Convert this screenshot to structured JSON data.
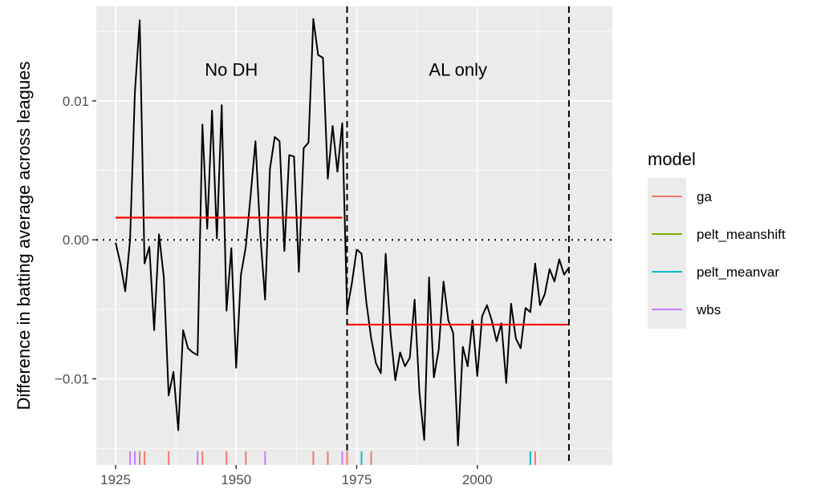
{
  "chart_data": {
    "type": "line",
    "xlabel": "",
    "ylabel": "Difference in batting average across leagues",
    "xlim": [
      1921,
      2028
    ],
    "ylim": [
      -0.0162,
      0.0168
    ],
    "x_ticks": [
      1925,
      1950,
      1975,
      2000
    ],
    "x_tick_labels": [
      "1925",
      "1950",
      "1975",
      "2000"
    ],
    "y_ticks": [
      -0.01,
      0.0,
      0.01
    ],
    "y_tick_labels": [
      "−0.01",
      "0.00",
      "0.01"
    ],
    "grid": true,
    "background": "#ebebeb",
    "series": [
      {
        "color": "#000000",
        "x": [
          1925,
          1926,
          1927,
          1928,
          1929,
          1930,
          1931,
          1932,
          1933,
          1934,
          1935,
          1936,
          1937,
          1938,
          1939,
          1940,
          1941,
          1942,
          1943,
          1944,
          1945,
          1946,
          1947,
          1948,
          1949,
          1950,
          1951,
          1952,
          1953,
          1954,
          1955,
          1956,
          1957,
          1958,
          1959,
          1960,
          1961,
          1962,
          1963,
          1964,
          1965,
          1966,
          1967,
          1968,
          1969,
          1970,
          1971,
          1972,
          1973,
          1974,
          1975,
          1976,
          1977,
          1978,
          1979,
          1980,
          1981,
          1982,
          1983,
          1984,
          1985,
          1986,
          1987,
          1988,
          1989,
          1990,
          1991,
          1992,
          1993,
          1994,
          1995,
          1996,
          1997,
          1998,
          1999,
          2000,
          2001,
          2002,
          2003,
          2004,
          2005,
          2006,
          2007,
          2008,
          2009,
          2010,
          2011,
          2012,
          2013,
          2014,
          2015,
          2016,
          2017,
          2018,
          2019
        ],
        "y": [
          -0.0002,
          -0.0017,
          -0.0037,
          0.0,
          0.0106,
          0.0158,
          -0.0017,
          -0.0005,
          -0.0065,
          0.0004,
          -0.0027,
          -0.0112,
          -0.0095,
          -0.0137,
          -0.0065,
          -0.0078,
          -0.0081,
          -0.0083,
          0.0083,
          0.0008,
          0.0093,
          0.0001,
          0.0097,
          -0.0051,
          -0.0006,
          -0.0092,
          -0.0025,
          -0.0005,
          0.0032,
          0.0071,
          0.0004,
          -0.0043,
          0.0051,
          0.0074,
          0.0071,
          -0.0008,
          0.0061,
          0.006,
          -0.0023,
          0.0066,
          0.007,
          0.0159,
          0.0133,
          0.0131,
          0.0044,
          0.0082,
          0.0049,
          0.0084,
          -0.0051,
          -0.0031,
          -0.0007,
          -0.001,
          -0.0045,
          -0.0071,
          -0.0089,
          -0.0096,
          -0.001,
          -0.0067,
          -0.0101,
          -0.0081,
          -0.0091,
          -0.0085,
          -0.0043,
          -0.011,
          -0.0144,
          -0.0027,
          -0.0099,
          -0.0079,
          -0.003,
          -0.0058,
          -0.0067,
          -0.0148,
          -0.0077,
          -0.0091,
          -0.0058,
          -0.0098,
          -0.0055,
          -0.0047,
          -0.0058,
          -0.0073,
          -0.006,
          -0.0103,
          -0.0046,
          -0.0071,
          -0.0078,
          -0.0049,
          -0.0052,
          -0.0017,
          -0.0047,
          -0.0039,
          -0.0021,
          -0.003,
          -0.0014,
          -0.0025,
          -0.002
        ]
      }
    ],
    "segments": [
      {
        "color": "#ff0000",
        "x0": 1925,
        "x1": 1972,
        "y": 0.0016
      },
      {
        "color": "#ff0000",
        "x0": 1973,
        "x1": 2019,
        "y": -0.0061
      }
    ],
    "hline": {
      "y": 0.0,
      "style": "dotted",
      "color": "#000000"
    },
    "vlines": [
      {
        "x": 1973,
        "style": "dashed",
        "color": "#000000"
      },
      {
        "x": 2019,
        "style": "dashed",
        "color": "#000000"
      }
    ],
    "annotations": [
      {
        "text": "No DH",
        "x": 1949,
        "y": 0.0118
      },
      {
        "text": "AL only",
        "x": 1996,
        "y": 0.0118
      }
    ],
    "rug": [
      {
        "model": "ga",
        "x": [
          1930,
          1931,
          1936,
          1943,
          1948,
          1952,
          1966,
          1969,
          1973,
          1978,
          2012
        ]
      },
      {
        "model": "pelt_meanvar",
        "x": [
          1976,
          2011
        ]
      },
      {
        "model": "wbs",
        "x": [
          1928,
          1929,
          1942,
          1956,
          1972
        ]
      }
    ],
    "legend": {
      "title": "model",
      "position": "right",
      "entries": [
        {
          "label": "ga",
          "color": "#f8766d"
        },
        {
          "label": "pelt_meanshift",
          "color": "#7cae00"
        },
        {
          "label": "pelt_meanvar",
          "color": "#00bfc4"
        },
        {
          "label": "wbs",
          "color": "#c77cff"
        }
      ]
    }
  }
}
